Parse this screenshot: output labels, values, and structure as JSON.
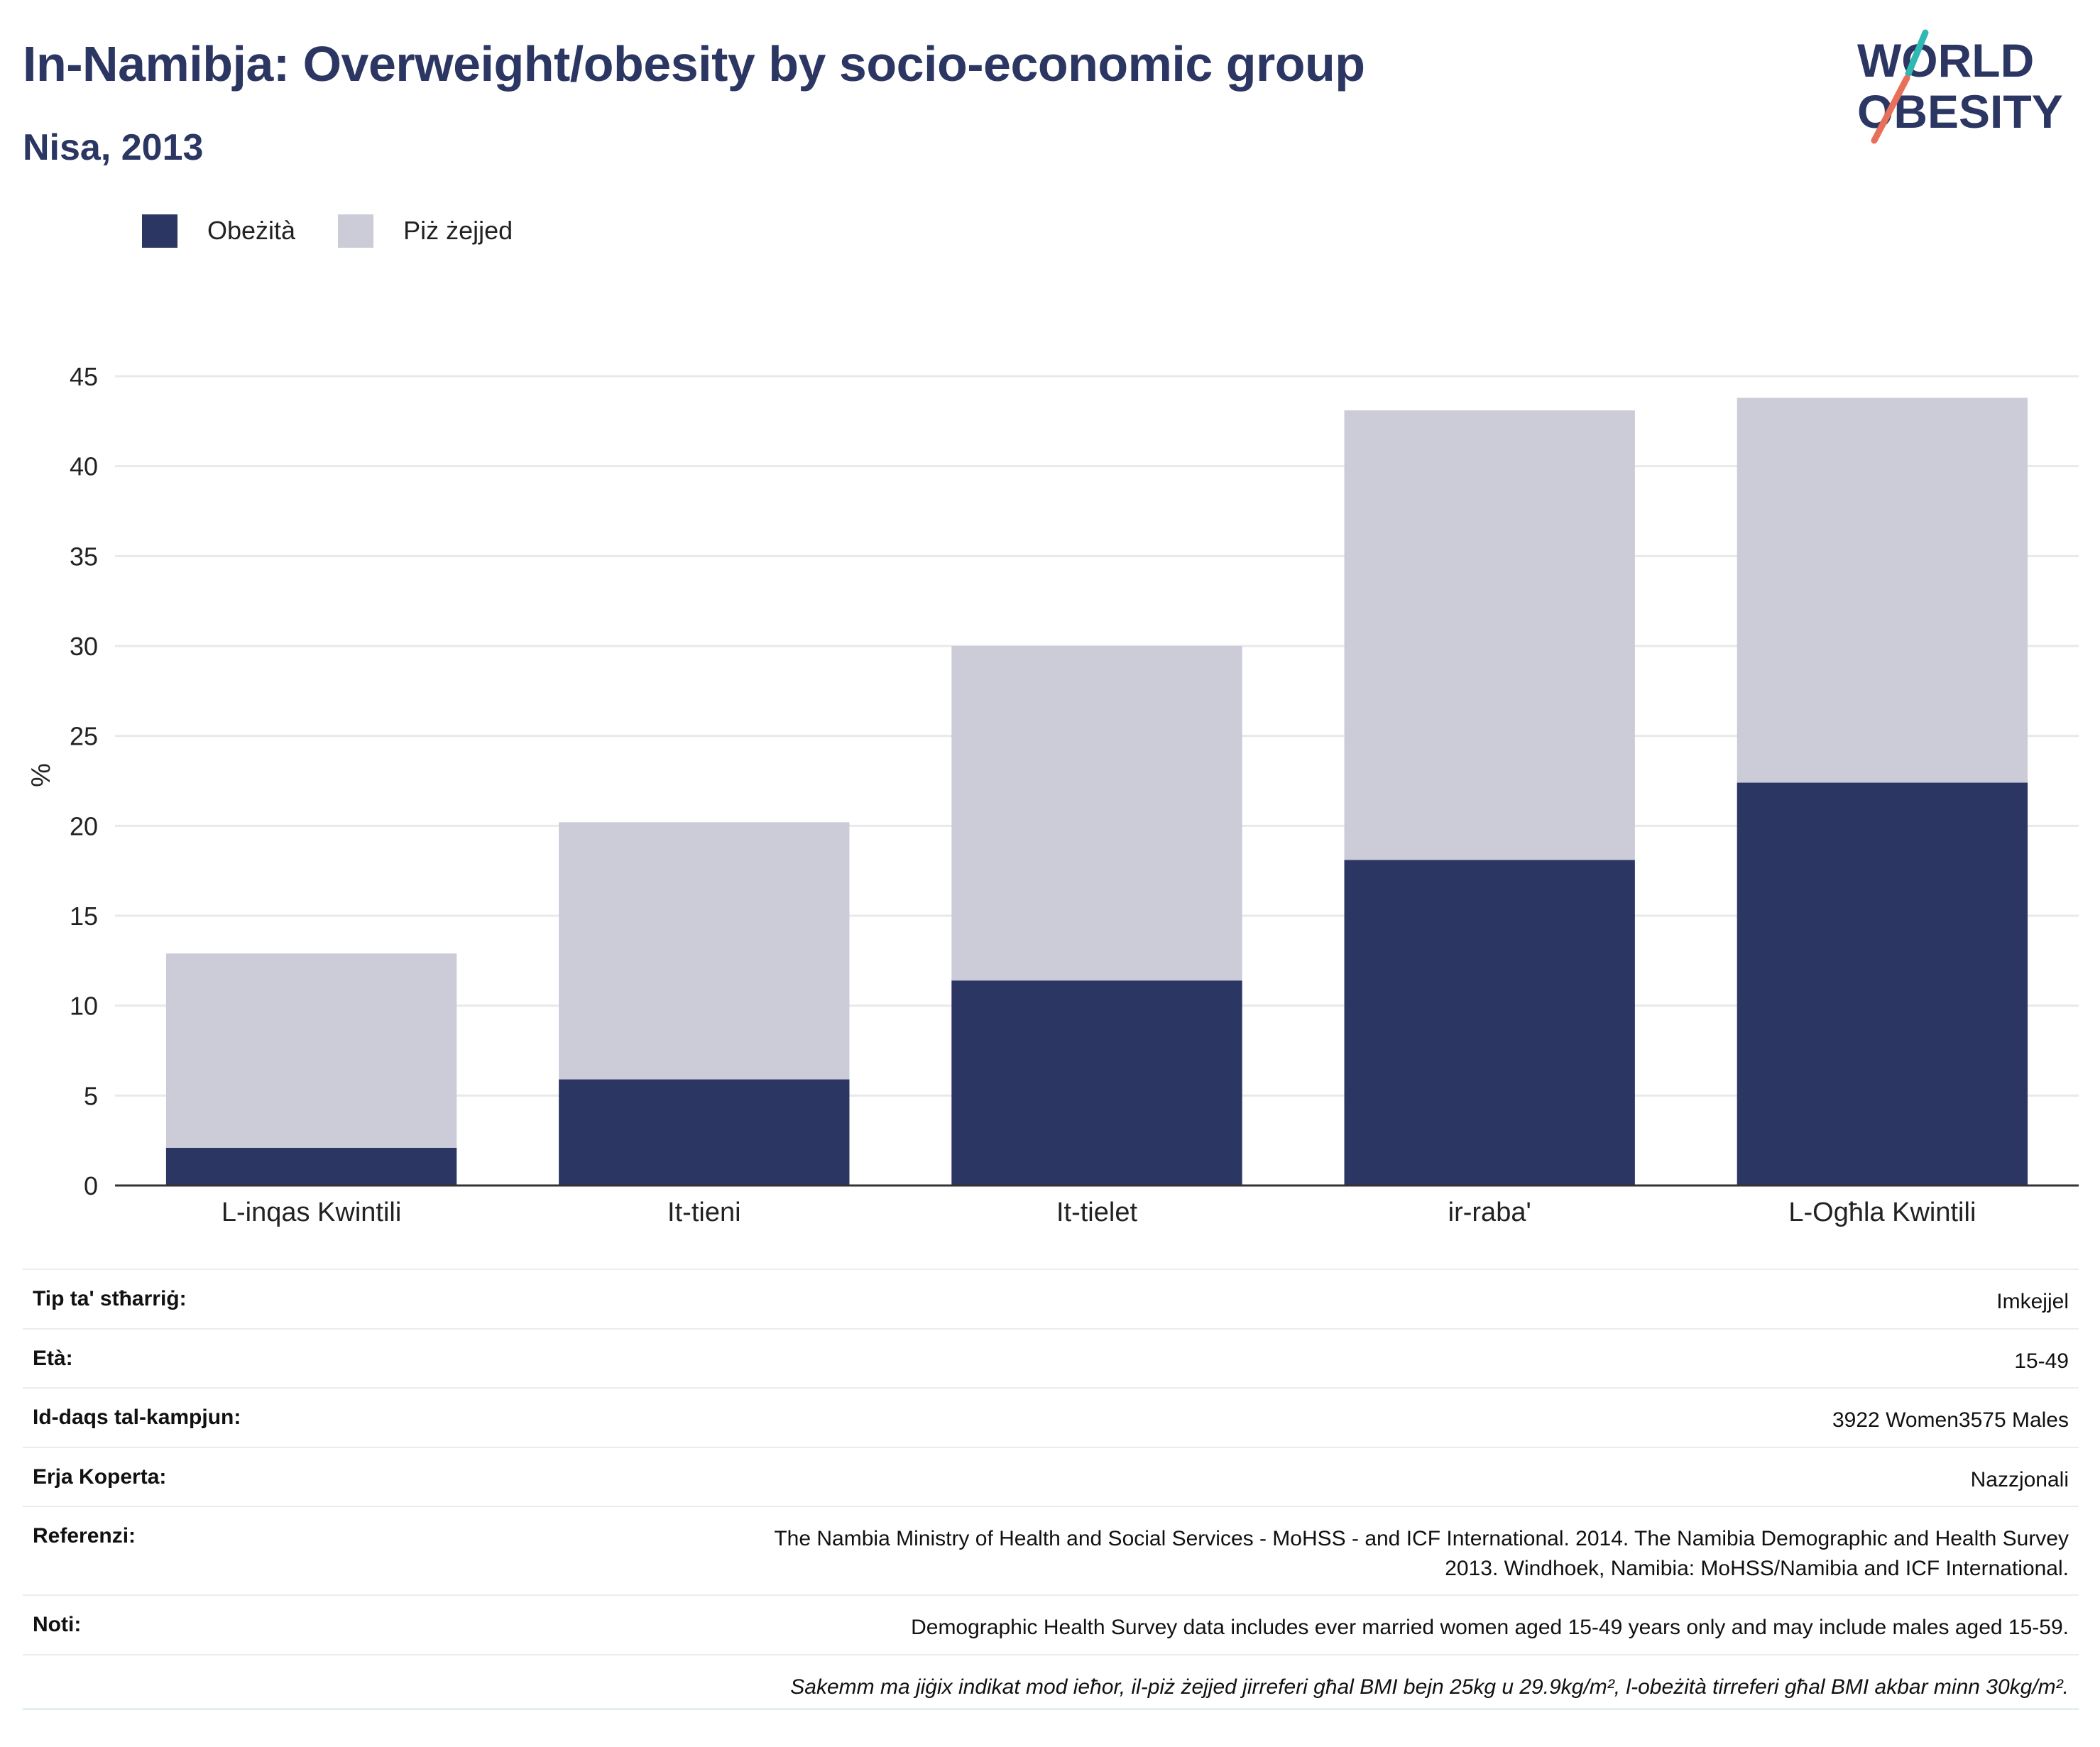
{
  "header": {
    "title": "In-Namibja: Overweight/obesity by socio-economic group",
    "subtitle": "Nisa, 2013"
  },
  "logo": {
    "line1": "WORLD",
    "line2": "OBESITY",
    "colors": {
      "text": "#2b3663",
      "slash_top": "#2fb8b4",
      "slash_bottom": "#e8705a"
    }
  },
  "legend": [
    {
      "label": "Obeżità",
      "color": "#2b3663"
    },
    {
      "label": "Piż żejjed",
      "color": "#cbccd8"
    }
  ],
  "chart_data": {
    "type": "bar",
    "stacked": true,
    "categories": [
      "L-inqas Kwintili",
      "It-tieni",
      "It-tielet",
      "ir-raba'",
      "L-Ogħla Kwintili"
    ],
    "series": [
      {
        "name": "Obeżità",
        "color": "#2b3663",
        "values": [
          2.1,
          5.9,
          11.4,
          18.1,
          22.4
        ]
      },
      {
        "name": "Piż żejjed",
        "color": "#cbccd8",
        "values": [
          10.8,
          14.3,
          18.6,
          25.0,
          21.4
        ]
      }
    ],
    "ylabel": "%",
    "xlabel": "",
    "ylim": [
      0,
      45
    ],
    "yticks": [
      0,
      5,
      10,
      15,
      20,
      25,
      30,
      35,
      40,
      45
    ],
    "grid": true,
    "legend_position": "top-left"
  },
  "info": [
    {
      "key": "Tip ta' stħarriġ:",
      "value": "Imkejjel"
    },
    {
      "key": "Età:",
      "value": "15-49"
    },
    {
      "key": "Id-daqs tal-kampjun:",
      "value": "3922 Women3575 Males"
    },
    {
      "key": "Erja Koperta:",
      "value": "Nazzjonali"
    },
    {
      "key": "Referenzi:",
      "value_lines": [
        "The Nambia Ministry of Health and Social Services - MoHSS - and ICF International. 2014. The Namibia Demographic and Health Survey",
        "2013. Windhoek, Namibia: MoHSS/Namibia and ICF International."
      ]
    },
    {
      "key": "Noti:",
      "value": "Demographic Health Survey data includes ever married women aged 15-49 years only and may include males aged 15-59."
    },
    {
      "key": "",
      "value": "Sakemm ma jiġix indikat mod ieħor, il-piż żejjed jirreferi għal BMI bejn 25kg u 29.9kg/m², l-obeżità tirreferi għal BMI akbar minn 30kg/m²."
    }
  ]
}
